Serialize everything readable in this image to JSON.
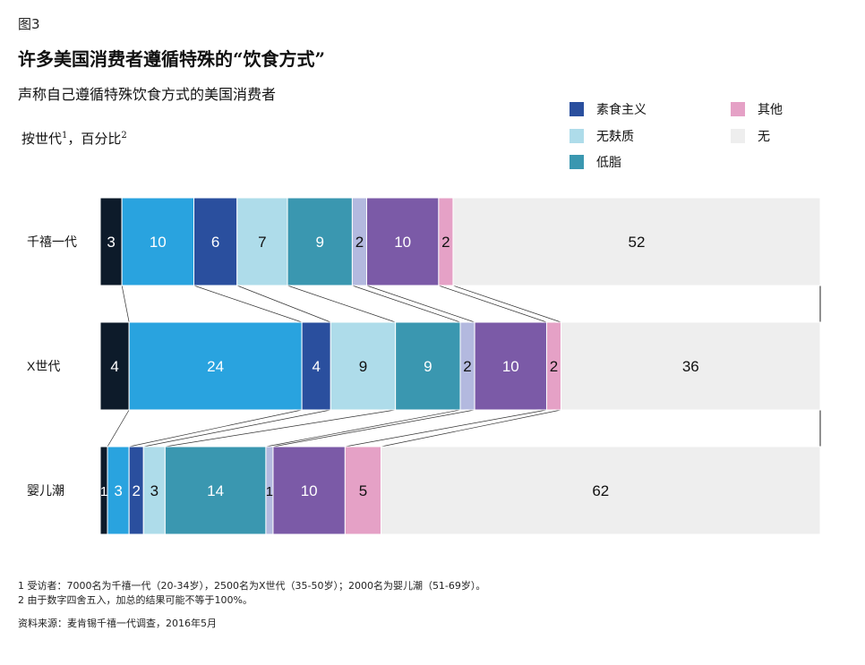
{
  "figure_label": "图3",
  "title": "许多美国消费者遵循特殊的“饮食方式”",
  "subtitle": "声称自己遵循特殊饮食方式的美国消费者",
  "unit": {
    "text": "按世代",
    "sup1": "1",
    "sep": "，百分比",
    "sup2": "2"
  },
  "footnotes": [
    "1 受访者：7000名为千禧一代（20-34岁），2500名为X世代（35-50岁）；2000名为婴儿潮（51-69岁）。",
    "2 由于数字四舍五入，加总的结果可能不等于100%。"
  ],
  "source": "资料来源：麦肯锡千禧一代调查，2016年5月",
  "chart_data": {
    "type": "bar",
    "orientation": "horizontal-stacked",
    "categories": [
      "千禧一代",
      "X世代",
      "婴儿潮"
    ],
    "xlim": [
      0,
      100
    ],
    "grid": false,
    "legend_placement": "top-right",
    "series": [
      {
        "color": "#0d1b2a",
        "values": [
          3,
          4,
          1
        ]
      },
      {
        "color": "#29a3df",
        "values": [
          10,
          24,
          3
        ]
      },
      {
        "name": "素食主义",
        "color": "#2a4f9e",
        "values": [
          6,
          4,
          2
        ]
      },
      {
        "name": "无麸质",
        "color": "#aedcea",
        "values": [
          7,
          9,
          3
        ]
      },
      {
        "name": "低脂",
        "color": "#3a97b0",
        "values": [
          9,
          9,
          14
        ]
      },
      {
        "color": "#b3b9df",
        "values": [
          2,
          2,
          1
        ]
      },
      {
        "color": "#7b5aa7",
        "values": [
          10,
          10,
          10
        ]
      },
      {
        "name": "其他",
        "color": "#e5a1c6",
        "values": [
          2,
          2,
          5
        ]
      },
      {
        "name": "无",
        "color": "#eeeeee",
        "values": [
          52,
          36,
          62
        ]
      }
    ]
  }
}
